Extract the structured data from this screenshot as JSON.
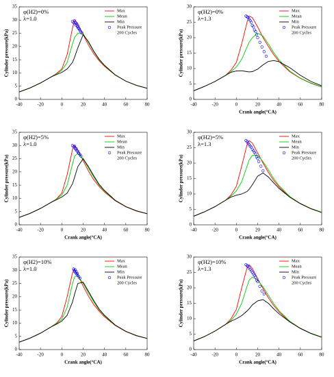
{
  "chart_data": [
    {
      "type": "line",
      "annotations": [
        "φ(H2)=0%",
        "λ=1.0"
      ],
      "ylabel": "Cylinder pressure(kPa)",
      "xlim": [
        -40,
        80
      ],
      "xticks": [
        -40,
        -20,
        0,
        20,
        40,
        60,
        80
      ],
      "ylim": [
        0,
        35
      ],
      "yticks": [
        0,
        5,
        10,
        15,
        20,
        25,
        30,
        35
      ],
      "legend_note": "200 Cycles",
      "x": [
        -40,
        -30,
        -20,
        -10,
        -5,
        0,
        5,
        10,
        12,
        15,
        20,
        25,
        30,
        35,
        40,
        50,
        60,
        70,
        80
      ],
      "series": [
        {
          "name": "Max",
          "color": "#ff0000",
          "values": [
            2.8,
            4.3,
            6.2,
            8.5,
            9.8,
            11.5,
            17,
            27,
            30,
            28.5,
            24.5,
            20.5,
            17.2,
            14.6,
            12.5,
            9.2,
            6.9,
            5.3,
            4.2
          ]
        },
        {
          "name": "Mean",
          "color": "#00cc00",
          "values": [
            2.8,
            4.3,
            6.2,
            8.5,
            9.6,
            11,
            14,
            21,
            23.5,
            25,
            24.8,
            21.5,
            18,
            15,
            12.8,
            9.2,
            6.9,
            5.3,
            4.2
          ]
        },
        {
          "name": "Min",
          "color": "#000000",
          "values": [
            2.8,
            4.3,
            6.2,
            8.5,
            9.4,
            10.2,
            11.5,
            14,
            16,
            19.5,
            24.5,
            21.8,
            18.2,
            15.2,
            12.9,
            9.3,
            6.9,
            5.3,
            4.2
          ]
        },
        {
          "name": "Peak Pressure",
          "type": "scatter",
          "color": "#0000ff",
          "x": [
            10,
            11,
            12,
            12.5,
            13,
            13.5,
            14,
            14.5,
            15,
            15.5,
            16,
            16.5,
            17,
            18,
            19
          ],
          "values": [
            29.5,
            29,
            29.8,
            28.5,
            29,
            28,
            28.6,
            27.5,
            27.8,
            27,
            26.8,
            26.5,
            26,
            25.5,
            25
          ]
        }
      ]
    },
    {
      "type": "line",
      "annotations": [
        "φ(H2)=0%",
        "λ=1.3"
      ],
      "ylabel": "Cylinder pressure(kPa)",
      "xlabel": "Crank angle(°CA)",
      "xlim": [
        -40,
        80
      ],
      "xticks": [
        -40,
        -20,
        0,
        20,
        40,
        60,
        80
      ],
      "ylim": [
        0,
        30
      ],
      "yticks": [
        0,
        5,
        10,
        15,
        20,
        25,
        30
      ],
      "legend_note": "200 Cycles",
      "x": [
        -40,
        -30,
        -20,
        -10,
        -5,
        0,
        5,
        10,
        12,
        15,
        20,
        25,
        30,
        35,
        40,
        50,
        60,
        70,
        80
      ],
      "series": [
        {
          "name": "Max",
          "color": "#ff0000",
          "values": [
            2.8,
            4.2,
            5.8,
            7.8,
            9.5,
            12,
            18,
            25,
            27,
            26.5,
            23.5,
            20,
            17.2,
            14.5,
            12.3,
            9,
            6.8,
            5.2,
            4
          ]
        },
        {
          "name": "Mean",
          "color": "#00cc00",
          "values": [
            2.8,
            4.2,
            5.8,
            7.8,
            9,
            10.5,
            13,
            17,
            18.5,
            20,
            21.5,
            20.5,
            18,
            15.2,
            12.8,
            9.2,
            6.9,
            5.3,
            4.1
          ]
        },
        {
          "name": "Min",
          "color": "#000000",
          "values": [
            2.8,
            4.2,
            5.8,
            7.8,
            8.8,
            9.2,
            9.3,
            9,
            8.9,
            9,
            9.8,
            11.2,
            12.3,
            12.6,
            12.2,
            10.3,
            7.8,
            5.8,
            4.4
          ]
        },
        {
          "name": "Peak Pressure",
          "type": "scatter",
          "color": "#0000ff",
          "x": [
            9,
            10,
            11,
            12,
            13,
            14,
            15,
            16,
            17,
            18,
            19,
            20,
            22,
            24,
            26,
            28
          ],
          "values": [
            27,
            26.8,
            26.5,
            26,
            25.5,
            25,
            24,
            23.5,
            22.5,
            22,
            21,
            20,
            18.5,
            17,
            15.5,
            14
          ]
        }
      ]
    },
    {
      "type": "line",
      "annotations": [
        "φ(H2)=5%",
        "λ=1.0"
      ],
      "ylabel": "Cylinder pressure(kPa)",
      "xlabel": "Crank angle(°CA)",
      "xlim": [
        -40,
        80
      ],
      "xticks": [
        -40,
        -20,
        0,
        20,
        40,
        60,
        80
      ],
      "ylim": [
        0,
        35
      ],
      "yticks": [
        0,
        5,
        10,
        15,
        20,
        25,
        30,
        35
      ],
      "legend_note": "200 Cycles",
      "x": [
        -40,
        -30,
        -20,
        -10,
        -5,
        0,
        5,
        10,
        12,
        15,
        20,
        25,
        30,
        35,
        40,
        50,
        60,
        70,
        80
      ],
      "series": [
        {
          "name": "Max",
          "color": "#ff0000",
          "values": [
            2.8,
            4.3,
            6.2,
            8.5,
            9.8,
            12,
            19,
            28.5,
            30,
            28.3,
            24.3,
            20.3,
            17,
            14.5,
            12.4,
            9.1,
            6.8,
            5.2,
            4.2
          ]
        },
        {
          "name": "Mean",
          "color": "#00cc00",
          "values": [
            2.8,
            4.3,
            6.2,
            8.5,
            9.7,
            11.3,
            15,
            23,
            26,
            27,
            25,
            21.4,
            18,
            15,
            12.8,
            9.2,
            6.9,
            5.3,
            4.2
          ]
        },
        {
          "name": "Min",
          "color": "#000000",
          "values": [
            2.8,
            4.3,
            6.2,
            8.5,
            9.5,
            10.5,
            12,
            15.5,
            18,
            22,
            25,
            22,
            18.5,
            15.3,
            13,
            9.3,
            6.9,
            5.3,
            4.2
          ]
        },
        {
          "name": "Peak Pressure",
          "type": "scatter",
          "color": "#0000ff",
          "x": [
            10,
            11,
            12,
            12.5,
            13,
            13.5,
            14,
            15,
            15.5,
            16,
            17,
            18
          ],
          "values": [
            30,
            29.5,
            29.8,
            29,
            28.6,
            28.8,
            28,
            27.8,
            27.2,
            27,
            26.5,
            26
          ]
        }
      ]
    },
    {
      "type": "line",
      "annotations": [
        "φ(H2)=5%",
        "λ=1.3"
      ],
      "ylabel": "Cylinder pressure(kPa)",
      "xlabel": "Crank angle(°CA)",
      "xlim": [
        -40,
        80
      ],
      "xticks": [
        -40,
        -20,
        0,
        20,
        40,
        60,
        80
      ],
      "ylim": [
        0,
        30
      ],
      "yticks": [
        0,
        5,
        10,
        15,
        20,
        25,
        30
      ],
      "legend_note": "200 Cycles",
      "x": [
        -40,
        -30,
        -20,
        -10,
        -5,
        0,
        5,
        10,
        12,
        15,
        20,
        25,
        30,
        35,
        40,
        50,
        60,
        70,
        80
      ],
      "series": [
        {
          "name": "Max",
          "color": "#ff0000",
          "values": [
            2.8,
            4.2,
            5.9,
            8,
            9.7,
            12.5,
            19,
            26,
            27.3,
            26.5,
            23.3,
            20,
            17,
            14.4,
            12.3,
            9,
            6.8,
            5.2,
            4
          ]
        },
        {
          "name": "Mean",
          "color": "#00cc00",
          "values": [
            2.8,
            4.2,
            5.9,
            8,
            9.3,
            11,
            14,
            19,
            21,
            22.5,
            22.5,
            20.5,
            17.8,
            15,
            12.7,
            9.2,
            6.9,
            5.3,
            4.1
          ]
        },
        {
          "name": "Min",
          "color": "#000000",
          "values": [
            2.8,
            4.2,
            5.9,
            8,
            9,
            9.6,
            10,
            10.8,
            11.5,
            13,
            15.8,
            16.8,
            15.5,
            13.6,
            11.8,
            9,
            6.9,
            5.2,
            4
          ]
        },
        {
          "name": "Peak Pressure",
          "type": "scatter",
          "color": "#0000ff",
          "x": [
            9,
            10,
            11,
            12,
            13,
            14,
            15,
            16,
            17,
            18,
            19,
            20,
            21,
            23,
            25
          ],
          "values": [
            27.3,
            27,
            26.5,
            26,
            25.5,
            25.2,
            24.5,
            24,
            23.5,
            23,
            22,
            21.5,
            20.5,
            19,
            17.5
          ]
        }
      ]
    },
    {
      "type": "line",
      "annotations": [
        "φ(H2)=10%",
        "λ=1.0"
      ],
      "ylabel": "Cylinder pressure(kPa)",
      "xlabel": "Crank angle(°CA)",
      "xlim": [
        -40,
        80
      ],
      "xticks": [
        -40,
        -20,
        0,
        20,
        40,
        60,
        80
      ],
      "ylim": [
        0,
        35
      ],
      "yticks": [
        0,
        5,
        10,
        15,
        20,
        25,
        30,
        35
      ],
      "legend_note": "200 Cycles",
      "x": [
        -40,
        -30,
        -20,
        -10,
        -5,
        0,
        5,
        10,
        12,
        15,
        20,
        25,
        30,
        35,
        40,
        50,
        60,
        70,
        80
      ],
      "series": [
        {
          "name": "Max",
          "color": "#ff0000",
          "values": [
            2.8,
            4.3,
            6.2,
            8.6,
            10,
            12.5,
            20,
            29,
            30.5,
            28.3,
            24,
            20.2,
            17,
            14.5,
            12.4,
            9.1,
            6.8,
            5.2,
            4.2
          ]
        },
        {
          "name": "Mean",
          "color": "#00cc00",
          "values": [
            2.8,
            4.3,
            6.2,
            8.6,
            9.8,
            11.5,
            16,
            25,
            27.5,
            28,
            25,
            21.4,
            18,
            15,
            12.8,
            9.2,
            6.9,
            5.3,
            4.2
          ]
        },
        {
          "name": "Min",
          "color": "#000000",
          "values": [
            2.8,
            4.3,
            6.2,
            8.6,
            9.6,
            10.8,
            13,
            18,
            21,
            25,
            25.5,
            22,
            18.5,
            15.3,
            13,
            9.3,
            6.9,
            5.3,
            4.2
          ]
        },
        {
          "name": "Peak Pressure",
          "type": "scatter",
          "color": "#0000ff",
          "x": [
            11,
            11.5,
            12,
            12.5,
            13,
            13.5,
            14,
            14.5,
            15,
            16,
            17
          ],
          "values": [
            30.5,
            30,
            29.5,
            30.2,
            29,
            29.5,
            28.5,
            28.8,
            28,
            27.5,
            27
          ]
        }
      ]
    },
    {
      "type": "line",
      "annotations": [
        "φ(H2)=10%",
        "λ=1.3"
      ],
      "ylabel": "Cylinder pressure(kPa)",
      "xlabel": "Crank angle(°CA)",
      "xlim": [
        -40,
        80
      ],
      "xticks": [
        -40,
        -20,
        0,
        20,
        40,
        60,
        80
      ],
      "ylim": [
        0,
        30
      ],
      "yticks": [
        0,
        5,
        10,
        15,
        20,
        25,
        30
      ],
      "legend_note": "200 Cycles",
      "x": [
        -40,
        -30,
        -20,
        -10,
        -5,
        0,
        5,
        10,
        12,
        15,
        20,
        25,
        30,
        35,
        40,
        50,
        60,
        70,
        80
      ],
      "series": [
        {
          "name": "Max",
          "color": "#ff0000",
          "values": [
            2.8,
            4.2,
            6,
            8.2,
            10,
            13,
            20,
            26.5,
            27.5,
            26.3,
            23,
            19.8,
            16.8,
            14.3,
            12.2,
            9,
            6.8,
            5.2,
            4
          ]
        },
        {
          "name": "Mean",
          "color": "#00cc00",
          "values": [
            2.8,
            4.2,
            6,
            8.2,
            9.5,
            11.5,
            15,
            20.5,
            22.5,
            23.5,
            22.5,
            20.3,
            17.6,
            14.9,
            12.6,
            9.2,
            6.9,
            5.3,
            4.1
          ]
        },
        {
          "name": "Min",
          "color": "#000000",
          "values": [
            2.8,
            4.2,
            6,
            8.2,
            9.2,
            10,
            11,
            12.5,
            13.2,
            14.5,
            15.8,
            16.2,
            15,
            13.2,
            11.6,
            9,
            6.9,
            5.2,
            4
          ]
        },
        {
          "name": "Peak Pressure",
          "type": "scatter",
          "color": "#0000ff",
          "x": [
            9,
            10,
            11,
            12,
            13,
            14,
            15,
            16,
            17,
            18,
            19,
            20,
            22,
            24,
            26
          ],
          "values": [
            27.5,
            27.2,
            27,
            26.5,
            26,
            25.5,
            25,
            24.5,
            24,
            23.5,
            22.5,
            22,
            20.5,
            19,
            18
          ]
        }
      ]
    }
  ]
}
